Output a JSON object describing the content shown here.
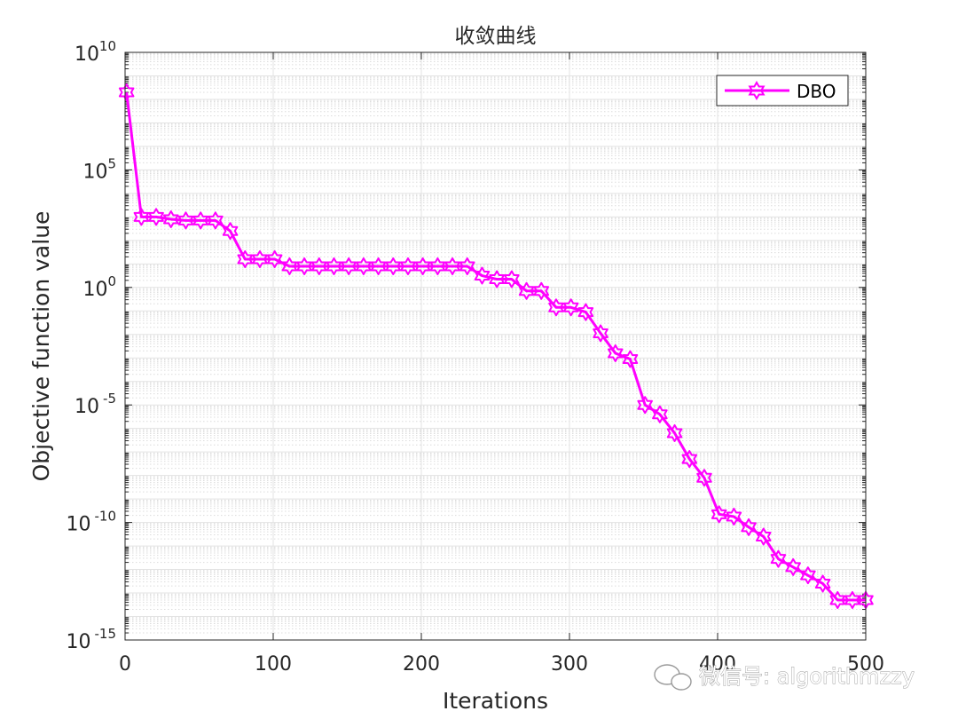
{
  "chart_data": {
    "type": "line",
    "title": "收敛曲线",
    "xlabel": "Iterations",
    "ylabel": "Objective function value",
    "xlim": [
      0,
      500
    ],
    "ylim_log10": [
      -15,
      10
    ],
    "yscale": "log",
    "grid": true,
    "legend_position": "top-right",
    "x_ticks": [
      "0",
      "100",
      "200",
      "300",
      "400",
      "500"
    ],
    "y_ticks": [
      {
        "base": "10",
        "exp": "10",
        "value": 10
      },
      {
        "base": "10",
        "exp": "5",
        "value": 5
      },
      {
        "base": "10",
        "exp": "0",
        "value": 0
      },
      {
        "base": "10",
        "exp": "-5",
        "value": -5
      },
      {
        "base": "10",
        "exp": "-10",
        "value": -10
      },
      {
        "base": "10",
        "exp": "-15",
        "value": -15
      }
    ],
    "series": [
      {
        "name": "DBO",
        "color": "#ff00ff",
        "marker": "hexagram",
        "x": [
          1,
          11,
          21,
          31,
          41,
          51,
          61,
          71,
          81,
          91,
          101,
          111,
          121,
          131,
          141,
          151,
          161,
          171,
          181,
          191,
          201,
          211,
          221,
          231,
          241,
          251,
          261,
          271,
          281,
          291,
          301,
          311,
          321,
          331,
          341,
          351,
          361,
          371,
          381,
          391,
          401,
          411,
          421,
          431,
          441,
          451,
          461,
          471,
          481,
          491,
          500
        ],
        "log10_y": [
          8.3,
          3.0,
          3.0,
          2.9,
          2.85,
          2.85,
          2.85,
          2.4,
          1.2,
          1.2,
          1.2,
          0.9,
          0.9,
          0.9,
          0.9,
          0.9,
          0.9,
          0.9,
          0.9,
          0.9,
          0.9,
          0.9,
          0.9,
          0.9,
          0.5,
          0.35,
          0.35,
          -0.15,
          -0.15,
          -0.85,
          -0.85,
          -1.05,
          -1.95,
          -2.8,
          -3.05,
          -5.0,
          -5.4,
          -6.2,
          -7.3,
          -8.1,
          -9.65,
          -9.75,
          -10.2,
          -10.6,
          -11.55,
          -11.9,
          -12.25,
          -12.6,
          -13.3,
          -13.3,
          -13.3
        ]
      }
    ]
  },
  "watermark": {
    "text": "微信号: algorithmzzy",
    "icon": "wechat-icon"
  }
}
